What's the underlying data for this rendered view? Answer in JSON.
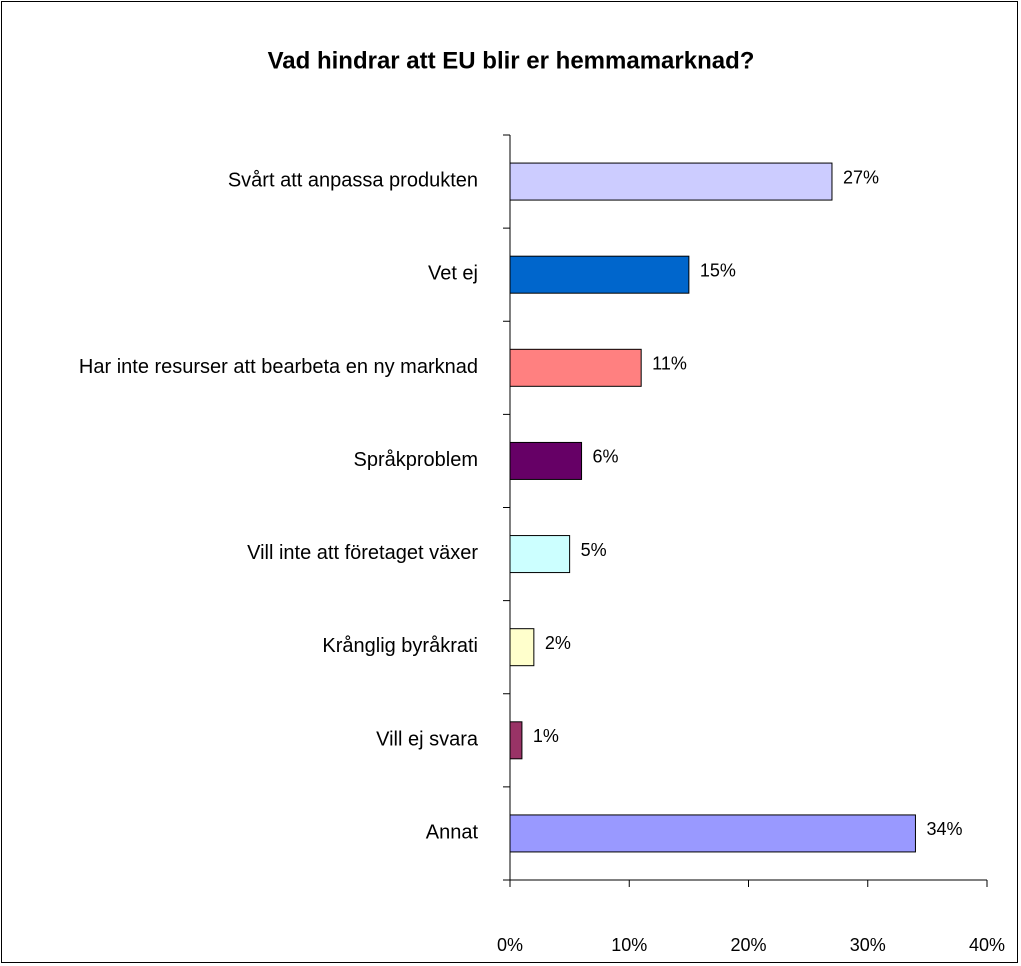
{
  "chart_data": {
    "type": "bar",
    "orientation": "horizontal",
    "title": "Vad hindrar att EU blir er hemmamarknad?",
    "categories": [
      "Svårt att anpassa produkten",
      "Vet ej",
      "Har inte resurser att bearbeta en ny marknad",
      "Språkproblem",
      "Vill inte att företaget växer",
      "Krånglig byråkrati",
      "Vill ej svara",
      "Annat"
    ],
    "values": [
      27,
      15,
      11,
      6,
      5,
      2,
      1,
      34
    ],
    "value_labels": [
      "27%",
      "15%",
      "11%",
      "6%",
      "5%",
      "2%",
      "1%",
      "34%"
    ],
    "colors": [
      "#ccccff",
      "#0066cc",
      "#ff8080",
      "#660066",
      "#ccffff",
      "#ffffcc",
      "#993366",
      "#9999ff"
    ],
    "xlim": [
      0,
      40
    ],
    "xticks": [
      {
        "value": 0,
        "label": "0%"
      },
      {
        "value": 10,
        "label": "10%"
      },
      {
        "value": 20,
        "label": "20%"
      },
      {
        "value": 30,
        "label": "30%"
      },
      {
        "value": 40,
        "label": "40%"
      }
    ],
    "grid": false
  }
}
